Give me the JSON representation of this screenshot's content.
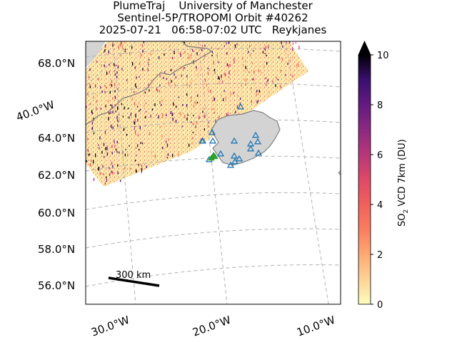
{
  "title": {
    "line1": "PlumeTraj    University of Manchester",
    "line2": "Sentinel-5P/TROPOMI Orbit #40262",
    "line3": "2025-07-21   06:58-07:02 UTC   Reykjanes"
  },
  "map": {
    "lat_labels": [
      "68.0°N",
      "64.0°N",
      "62.0°N",
      "60.0°N",
      "58.0°N",
      "56.0°N"
    ],
    "lon_labels": [
      "40.0°W",
      "30.0°W",
      "20.0°W",
      "10.0°W"
    ],
    "scale_bar_label": "300 km",
    "land_color": "#d3d3d3",
    "coast_color": "#808080",
    "volcano_marker_color": "#1f77b4",
    "active_volcano_color": "#2ca02c"
  },
  "colorbar": {
    "label_main": "SO",
    "label_sub": "2",
    "label_rest": " VCD 7km (DU)",
    "ticks": [
      "0",
      "2",
      "4",
      "6",
      "8",
      "10"
    ],
    "colormap": "magma_r"
  }
}
